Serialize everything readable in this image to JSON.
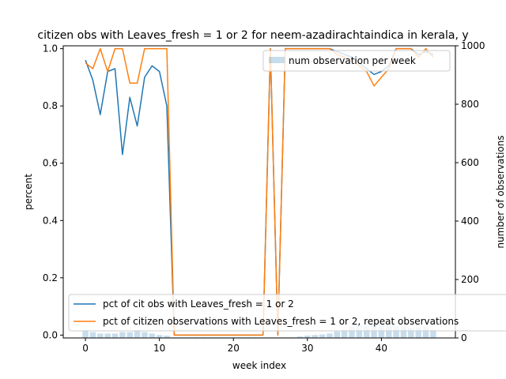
{
  "chart_data": {
    "type": "line",
    "title": "citizen obs with Leaves_fresh = 1 or 2 for neem-azadirachtaindica in kerala, y",
    "xlabel": "week index",
    "ylabel": "percent",
    "y2label": "number of observations",
    "xlim": [
      -3,
      50
    ],
    "ylim": [
      -0.01,
      1.01
    ],
    "y2lim": [
      0,
      1000
    ],
    "xticks": [
      0,
      10,
      20,
      30,
      40
    ],
    "yticks": [
      0.0,
      0.2,
      0.4,
      0.6,
      0.8,
      1.0
    ],
    "y2ticks": [
      0,
      200,
      400,
      600,
      800,
      1000
    ],
    "ytick_labels": [
      "0.0",
      "0.2",
      "0.4",
      "0.6",
      "0.8",
      "1.0"
    ],
    "grid": false,
    "series": [
      {
        "name": "pct of cit obs with Leaves_fresh = 1 or 2",
        "color": "#1f77b4",
        "x": [
          0,
          1,
          2,
          3,
          4,
          5,
          6,
          7,
          8,
          9,
          10,
          11,
          12,
          13,
          14,
          15,
          16,
          17,
          18,
          19,
          20,
          21,
          22,
          23,
          24,
          25,
          26,
          27,
          28,
          29,
          30,
          31,
          32,
          33,
          34,
          35,
          36,
          37,
          38,
          39,
          40,
          41,
          42,
          43,
          44,
          45,
          46,
          47
        ],
        "values": [
          0.96,
          0.89,
          0.77,
          0.92,
          0.93,
          0.63,
          0.83,
          0.73,
          0.9,
          0.94,
          0.92,
          0.8,
          0.0,
          0.0,
          0.0,
          0.0,
          0.0,
          0.0,
          0.0,
          0.0,
          0.0,
          0.0,
          0.0,
          0.0,
          0.0,
          1.0,
          0.0,
          1.0,
          1.0,
          1.0,
          1.0,
          1.0,
          1.0,
          1.0,
          0.99,
          0.98,
          0.97,
          0.95,
          0.93,
          0.91,
          0.92,
          0.94,
          1.0,
          1.0,
          1.0,
          0.98,
          0.99,
          0.98
        ]
      },
      {
        "name": "pct of citizen observations with Leaves_fresh = 1 or 2, repeat observations",
        "color": "#ff7f0e",
        "x": [
          0,
          1,
          2,
          3,
          4,
          5,
          6,
          7,
          8,
          9,
          10,
          11,
          12,
          13,
          14,
          15,
          16,
          17,
          18,
          19,
          20,
          21,
          22,
          23,
          24,
          25,
          26,
          27,
          28,
          29,
          30,
          31,
          32,
          33,
          34,
          35,
          36,
          37,
          38,
          39,
          40,
          41,
          42,
          43,
          44,
          45,
          46,
          47
        ],
        "values": [
          0.95,
          0.93,
          1.0,
          0.92,
          1.0,
          1.0,
          0.88,
          0.88,
          1.0,
          1.0,
          1.0,
          1.0,
          0.0,
          0.0,
          0.0,
          0.0,
          0.0,
          0.0,
          0.0,
          0.0,
          0.0,
          0.0,
          0.0,
          0.0,
          0.0,
          1.0,
          0.0,
          1.0,
          1.0,
          1.0,
          1.0,
          1.0,
          1.0,
          1.0,
          0.98,
          0.97,
          0.96,
          0.94,
          0.92,
          0.87,
          0.9,
          0.93,
          1.0,
          1.0,
          1.0,
          0.97,
          1.0,
          0.97
        ]
      }
    ],
    "bar_series": {
      "name": "num observation per week",
      "color": "#1f77b4",
      "opacity": 0.25,
      "x": [
        0,
        1,
        2,
        3,
        4,
        5,
        6,
        7,
        8,
        9,
        10,
        11,
        12,
        13,
        14,
        15,
        16,
        17,
        18,
        19,
        20,
        21,
        22,
        23,
        24,
        25,
        26,
        27,
        28,
        29,
        30,
        31,
        32,
        33,
        34,
        35,
        36,
        37,
        38,
        39,
        40,
        41,
        42,
        43,
        44,
        45,
        46,
        47
      ],
      "values": [
        25,
        20,
        15,
        15,
        15,
        20,
        20,
        25,
        20,
        15,
        10,
        8,
        2,
        2,
        2,
        2,
        2,
        2,
        2,
        2,
        2,
        2,
        2,
        2,
        2,
        2,
        2,
        2,
        2,
        5,
        8,
        10,
        12,
        15,
        22,
        28,
        40,
        45,
        42,
        45,
        45,
        42,
        40,
        40,
        35,
        35,
        40,
        28
      ]
    },
    "legend": {
      "upper": {
        "placement": "upper-right",
        "entries": [
          "num observation per week"
        ]
      },
      "lower": {
        "placement": "lower-center",
        "entries": [
          "pct of cit obs with Leaves_fresh = 1 or 2",
          "pct of citizen observations with Leaves_fresh = 1 or 2, repeat observations"
        ]
      }
    }
  }
}
